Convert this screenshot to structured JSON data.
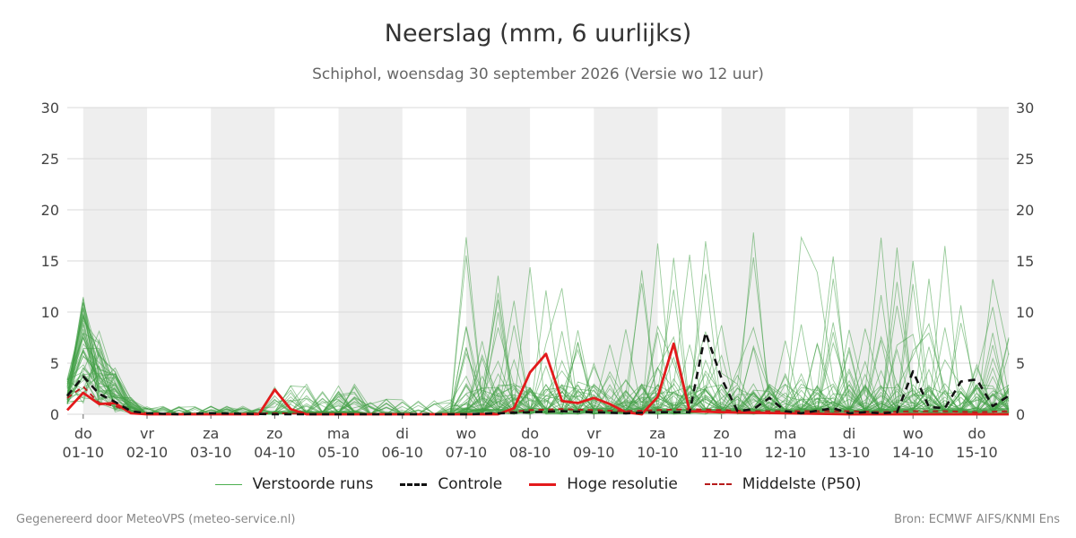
{
  "header": {
    "title": "Neerslag (mm, 6 uurlijks)",
    "subtitle": "Schiphol, woensdag 30 september 2026 (Versie wo 12 uur)"
  },
  "footer": {
    "left": "Gegenereerd door MeteoVPS (meteo-service.nl)",
    "right": "Bron: ECMWF AIFS/KNMI Ens"
  },
  "legend": [
    {
      "label": "Verstoorde runs",
      "color": "#4caf50",
      "style": "thin-solid"
    },
    {
      "label": "Controle",
      "color": "#111111",
      "style": "dashed"
    },
    {
      "label": "Hoge resolutie",
      "color": "#e31a1c",
      "style": "solid"
    },
    {
      "label": "Middelste (P50)",
      "color": "#b71c1c",
      "style": "dashed"
    }
  ],
  "chart_data": {
    "type": "line",
    "title": "Neerslag (mm, 6 uurlijks)",
    "subtitle": "Schiphol, woensdag 30 september 2026 (Versie wo 12 uur)",
    "ylim": [
      0,
      30
    ],
    "yticks": [
      0,
      5,
      10,
      15,
      20,
      25,
      30
    ],
    "grid": true,
    "legend_position": "bottom",
    "x_unit": "days since 01-10",
    "xlim": [
      -0.25,
      14.5
    ],
    "weekend_shading": [
      [
        0,
        1
      ],
      [
        2,
        3
      ],
      [
        4,
        5
      ],
      [
        6,
        7
      ],
      [
        8,
        9
      ],
      [
        10,
        11
      ],
      [
        12,
        13
      ],
      [
        14,
        14.5
      ]
    ],
    "day_ticks": [
      {
        "day": "do",
        "date": "01-10"
      },
      {
        "day": "vr",
        "date": "02-10"
      },
      {
        "day": "za",
        "date": "03-10"
      },
      {
        "day": "zo",
        "date": "04-10"
      },
      {
        "day": "ma",
        "date": "05-10"
      },
      {
        "day": "di",
        "date": "06-10"
      },
      {
        "day": "wo",
        "date": "07-10"
      },
      {
        "day": "do",
        "date": "08-10"
      },
      {
        "day": "vr",
        "date": "09-10"
      },
      {
        "day": "za",
        "date": "10-10"
      },
      {
        "day": "zo",
        "date": "11-10"
      },
      {
        "day": "ma",
        "date": "12-10"
      },
      {
        "day": "di",
        "date": "13-10"
      },
      {
        "day": "wo",
        "date": "14-10"
      },
      {
        "day": "do",
        "date": "15-10"
      }
    ],
    "series": [
      {
        "name": "Controle",
        "color": "#111111",
        "points": [
          [
            -0.25,
            1.8
          ],
          [
            0,
            3.7
          ],
          [
            0.25,
            2.0
          ],
          [
            0.5,
            1.2
          ],
          [
            0.75,
            0.3
          ],
          [
            1,
            0.1
          ],
          [
            1.5,
            0
          ],
          [
            2,
            0.1
          ],
          [
            3,
            0
          ],
          [
            4,
            0
          ],
          [
            5,
            0
          ],
          [
            6,
            0
          ],
          [
            6.5,
            0.1
          ],
          [
            7,
            0.2
          ],
          [
            7.5,
            0.3
          ],
          [
            8,
            0.2
          ],
          [
            8.5,
            0.1
          ],
          [
            9,
            0.2
          ],
          [
            9.5,
            0.2
          ],
          [
            9.75,
            8.0
          ],
          [
            10,
            3.5
          ],
          [
            10.25,
            0.3
          ],
          [
            10.5,
            0.5
          ],
          [
            10.75,
            1.6
          ],
          [
            11,
            0.3
          ],
          [
            11.25,
            0.1
          ],
          [
            11.75,
            0.6
          ],
          [
            12,
            0.1
          ],
          [
            12.25,
            0.2
          ],
          [
            12.5,
            0.1
          ],
          [
            12.75,
            0.2
          ],
          [
            13,
            4.2
          ],
          [
            13.25,
            0.7
          ],
          [
            13.5,
            0.6
          ],
          [
            13.75,
            3.2
          ],
          [
            14,
            3.4
          ],
          [
            14.25,
            0.8
          ],
          [
            14.5,
            1.8
          ]
        ]
      },
      {
        "name": "Hoge resolutie",
        "color": "#e31a1c",
        "points": [
          [
            -0.25,
            0.4
          ],
          [
            0,
            2.1
          ],
          [
            0.25,
            1.0
          ],
          [
            0.5,
            1.1
          ],
          [
            0.75,
            0.1
          ],
          [
            1,
            0
          ],
          [
            1.5,
            0
          ],
          [
            2,
            0
          ],
          [
            2.75,
            0
          ],
          [
            3,
            2.4
          ],
          [
            3.25,
            0.5
          ],
          [
            3.5,
            0
          ],
          [
            4,
            0
          ],
          [
            5,
            0
          ],
          [
            6,
            0
          ],
          [
            6.5,
            0
          ],
          [
            6.75,
            0.6
          ],
          [
            7,
            4.1
          ],
          [
            7.25,
            5.9
          ],
          [
            7.5,
            1.3
          ],
          [
            7.75,
            1.1
          ],
          [
            8,
            1.6
          ],
          [
            8.25,
            1.0
          ],
          [
            8.5,
            0.2
          ],
          [
            8.75,
            0
          ],
          [
            9,
            1.7
          ],
          [
            9.25,
            6.9
          ],
          [
            9.5,
            0.3
          ],
          [
            10,
            0.2
          ],
          [
            11,
            0.1
          ],
          [
            12,
            0
          ],
          [
            13,
            0
          ],
          [
            14,
            0
          ],
          [
            14.5,
            0
          ]
        ]
      },
      {
        "name": "Middelste (P50)",
        "color": "#b71c1c",
        "points": [
          [
            -0.25,
            1.6
          ],
          [
            0,
            2.7
          ],
          [
            0.25,
            1.1
          ],
          [
            0.5,
            0.8
          ],
          [
            0.75,
            0.2
          ],
          [
            1,
            0.1
          ],
          [
            2,
            0
          ],
          [
            3,
            0.1
          ],
          [
            4,
            0
          ],
          [
            5,
            0
          ],
          [
            6,
            0
          ],
          [
            6.5,
            0.1
          ],
          [
            7,
            0.4
          ],
          [
            7.5,
            0.5
          ],
          [
            8,
            0.4
          ],
          [
            8.5,
            0.3
          ],
          [
            9,
            0.4
          ],
          [
            9.5,
            0.5
          ],
          [
            10,
            0.4
          ],
          [
            10.5,
            0.3
          ],
          [
            11,
            0.3
          ],
          [
            11.5,
            0.3
          ],
          [
            12,
            0.3
          ],
          [
            12.5,
            0.2
          ],
          [
            13,
            0.3
          ],
          [
            13.5,
            0.3
          ],
          [
            14,
            0.2
          ],
          [
            14.5,
            0.3
          ]
        ]
      }
    ],
    "ensemble_members": 50
  }
}
